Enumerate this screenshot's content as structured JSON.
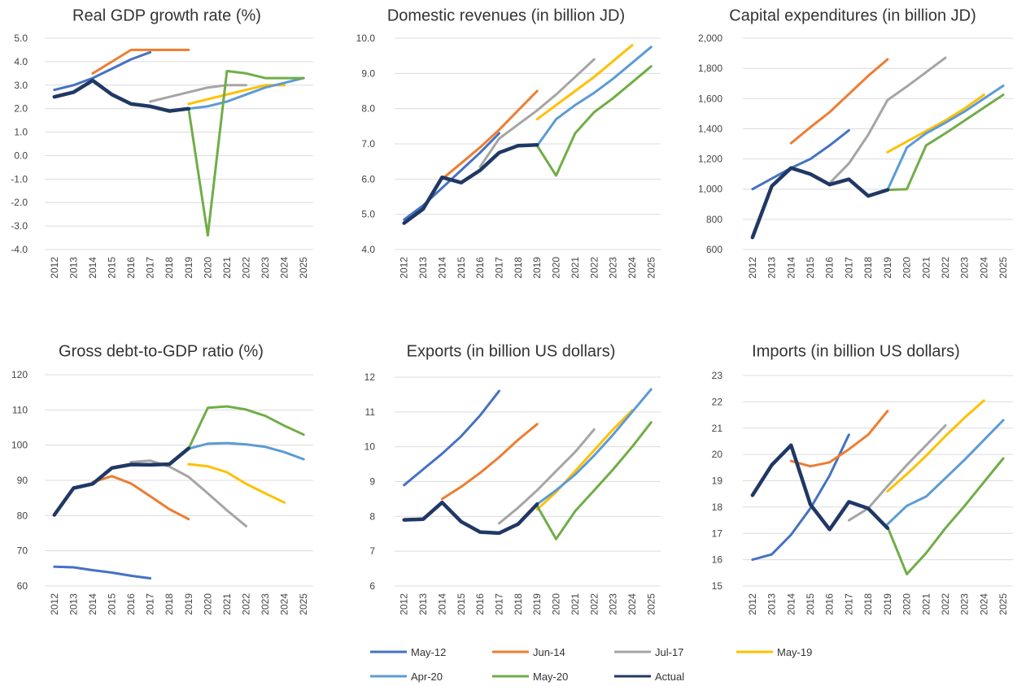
{
  "legend": [
    {
      "name": "May-12",
      "color": "#4472C4"
    },
    {
      "name": "Jun-14",
      "color": "#ED7D31"
    },
    {
      "name": "Jul-17",
      "color": "#A5A5A5"
    },
    {
      "name": "May-19",
      "color": "#FFC000"
    },
    {
      "name": "Apr-20",
      "color": "#5B9BD5"
    },
    {
      "name": "May-20",
      "color": "#70AD47"
    },
    {
      "name": "Actual",
      "color": "#203864"
    }
  ],
  "chart_data": [
    {
      "type": "line",
      "title": "Real GDP growth rate (%)",
      "categories": [
        "2012",
        "2013",
        "2014",
        "2015",
        "2016",
        "2017",
        "2018",
        "2019",
        "2020",
        "2021",
        "2022",
        "2023",
        "2024",
        "2025"
      ],
      "yticks": [
        "5.0",
        "4.0",
        "3.0",
        "2.0",
        "1.0",
        "0.0",
        "-1.0",
        "-2.0",
        "-3.0",
        "-4.0"
      ],
      "ylim": [
        -4,
        5
      ],
      "grid": true,
      "series": [
        {
          "name": "May-12",
          "x": [
            2012,
            2013,
            2014,
            2015,
            2016,
            2017
          ],
          "values": [
            2.8,
            3.0,
            3.3,
            3.7,
            4.1,
            4.4
          ]
        },
        {
          "name": "Jun-14",
          "x": [
            2014,
            2015,
            2016,
            2017,
            2018,
            2019
          ],
          "values": [
            3.5,
            4.0,
            4.5,
            4.5,
            4.5,
            4.5
          ]
        },
        {
          "name": "Jul-17",
          "x": [
            2017,
            2018,
            2019,
            2020,
            2021,
            2022
          ],
          "values": [
            2.3,
            2.5,
            2.7,
            2.9,
            3.0,
            3.0
          ]
        },
        {
          "name": "May-19",
          "x": [
            2019,
            2020,
            2021,
            2022,
            2023,
            2024
          ],
          "values": [
            2.2,
            2.4,
            2.6,
            2.8,
            3.0,
            3.0
          ]
        },
        {
          "name": "Apr-20",
          "x": [
            2019,
            2020,
            2021,
            2022,
            2023,
            2024,
            2025
          ],
          "values": [
            2.0,
            2.1,
            2.3,
            2.6,
            2.9,
            3.1,
            3.3
          ]
        },
        {
          "name": "May-20",
          "x": [
            2019,
            2020,
            2021,
            2022,
            2023,
            2024,
            2025
          ],
          "values": [
            2.0,
            -3.4,
            3.6,
            3.5,
            3.3,
            3.3,
            3.3
          ]
        },
        {
          "name": "Actual",
          "x": [
            2012,
            2013,
            2014,
            2015,
            2016,
            2017,
            2018,
            2019
          ],
          "values": [
            2.5,
            2.7,
            3.2,
            2.6,
            2.2,
            2.1,
            1.9,
            2.0
          ]
        }
      ]
    },
    {
      "type": "line",
      "title": "Domestic revenues (in billion JD)",
      "categories": [
        "2012",
        "2013",
        "2014",
        "2015",
        "2016",
        "2017",
        "2018",
        "2019",
        "2020",
        "2021",
        "2022",
        "2023",
        "2024",
        "2025"
      ],
      "yticks": [
        "10.0",
        "9.0",
        "8.0",
        "7.0",
        "6.0",
        "5.0",
        "4.0"
      ],
      "ylim": [
        4,
        10
      ],
      "grid": true,
      "series": [
        {
          "name": "May-12",
          "x": [
            2012,
            2013,
            2014,
            2015,
            2016,
            2017
          ],
          "values": [
            4.85,
            5.25,
            5.75,
            6.25,
            6.75,
            7.3
          ]
        },
        {
          "name": "Jun-14",
          "x": [
            2014,
            2015,
            2016,
            2017,
            2018,
            2019
          ],
          "values": [
            6.0,
            6.45,
            6.9,
            7.4,
            7.95,
            8.5
          ]
        },
        {
          "name": "Jul-17",
          "x": [
            2016,
            2017,
            2018,
            2019,
            2020,
            2021,
            2022
          ],
          "values": [
            6.35,
            7.15,
            7.55,
            7.95,
            8.4,
            8.9,
            9.4
          ]
        },
        {
          "name": "May-19",
          "x": [
            2019,
            2020,
            2021,
            2022,
            2023,
            2024
          ],
          "values": [
            7.7,
            8.1,
            8.5,
            8.9,
            9.35,
            9.8
          ]
        },
        {
          "name": "Apr-20",
          "x": [
            2019,
            2020,
            2021,
            2022,
            2023,
            2024,
            2025
          ],
          "values": [
            6.95,
            7.7,
            8.1,
            8.45,
            8.85,
            9.3,
            9.75
          ]
        },
        {
          "name": "May-20",
          "x": [
            2019,
            2020,
            2021,
            2022,
            2023,
            2024,
            2025
          ],
          "values": [
            6.95,
            6.1,
            7.3,
            7.9,
            8.3,
            8.75,
            9.2
          ]
        },
        {
          "name": "Actual",
          "x": [
            2012,
            2013,
            2014,
            2015,
            2016,
            2017,
            2018,
            2019
          ],
          "values": [
            4.75,
            5.15,
            6.05,
            5.9,
            6.25,
            6.75,
            6.95,
            6.97
          ]
        }
      ]
    },
    {
      "type": "line",
      "title": "Capital expenditures (in billion JD)",
      "categories": [
        "2012",
        "2013",
        "2014",
        "2015",
        "2016",
        "2017",
        "2018",
        "2019",
        "2020",
        "2021",
        "2022",
        "2023",
        "2024",
        "2025"
      ],
      "yticks": [
        "2,000",
        "1,800",
        "1,600",
        "1,400",
        "1,200",
        "1,000",
        "800",
        "600"
      ],
      "ylim": [
        600,
        2000
      ],
      "grid": true,
      "series": [
        {
          "name": "May-12",
          "x": [
            2012,
            2013,
            2014,
            2015,
            2016,
            2017
          ],
          "values": [
            1000,
            1070,
            1140,
            1200,
            1290,
            1390
          ]
        },
        {
          "name": "Jun-14",
          "x": [
            2014,
            2015,
            2016,
            2017,
            2018,
            2019
          ],
          "values": [
            1305,
            1410,
            1510,
            1630,
            1750,
            1860
          ]
        },
        {
          "name": "Jul-17",
          "x": [
            2016,
            2017,
            2018,
            2019,
            2020,
            2021,
            2022
          ],
          "values": [
            1040,
            1170,
            1360,
            1590,
            1680,
            1775,
            1870
          ]
        },
        {
          "name": "May-19",
          "x": [
            2019,
            2020,
            2021,
            2022,
            2023,
            2024
          ],
          "values": [
            1245,
            1315,
            1385,
            1455,
            1535,
            1625
          ]
        },
        {
          "name": "Apr-20",
          "x": [
            2019,
            2020,
            2021,
            2022,
            2023,
            2024,
            2025
          ],
          "values": [
            995,
            1275,
            1370,
            1440,
            1515,
            1600,
            1685
          ]
        },
        {
          "name": "May-20",
          "x": [
            2019,
            2020,
            2021,
            2022,
            2023,
            2024,
            2025
          ],
          "values": [
            995,
            1000,
            1290,
            1370,
            1455,
            1540,
            1625
          ]
        },
        {
          "name": "Actual",
          "x": [
            2012,
            2013,
            2014,
            2015,
            2016,
            2017,
            2018,
            2019
          ],
          "values": [
            680,
            1020,
            1140,
            1100,
            1030,
            1065,
            955,
            995
          ]
        }
      ]
    },
    {
      "type": "line",
      "title": "Gross debt-to-GDP ratio (%)",
      "categories": [
        "2012",
        "2013",
        "2014",
        "2015",
        "2016",
        "2017",
        "2018",
        "2019",
        "2020",
        "2021",
        "2022",
        "2023",
        "2024",
        "2025"
      ],
      "yticks": [
        "120",
        "110",
        "100",
        "90",
        "80",
        "70",
        "60"
      ],
      "ylim": [
        60,
        120
      ],
      "grid": true,
      "series": [
        {
          "name": "May-12",
          "x": [
            2012,
            2013,
            2014,
            2015,
            2016,
            2017
          ],
          "values": [
            65.5,
            65.3,
            64.5,
            63.8,
            62.9,
            62.2
          ]
        },
        {
          "name": "Jun-14",
          "x": [
            2014,
            2015,
            2016,
            2017,
            2018,
            2019
          ],
          "values": [
            89.5,
            91.2,
            89.1,
            85.5,
            81.8,
            79.0
          ]
        },
        {
          "name": "Jul-17",
          "x": [
            2016,
            2017,
            2018,
            2019,
            2020,
            2021,
            2022
          ],
          "values": [
            95.2,
            95.6,
            93.9,
            91.0,
            86.3,
            81.5,
            77.0
          ]
        },
        {
          "name": "May-19",
          "x": [
            2019,
            2020,
            2021,
            2022,
            2023,
            2024
          ],
          "values": [
            94.6,
            94.0,
            92.3,
            89.0,
            86.3,
            83.7
          ]
        },
        {
          "name": "Apr-20",
          "x": [
            2019,
            2020,
            2021,
            2022,
            2023,
            2024,
            2025
          ],
          "values": [
            99.0,
            100.4,
            100.6,
            100.2,
            99.5,
            98.0,
            96.0
          ]
        },
        {
          "name": "May-20",
          "x": [
            2019,
            2020,
            2021,
            2022,
            2023,
            2024,
            2025
          ],
          "values": [
            99.0,
            110.6,
            111.0,
            110.1,
            108.3,
            105.5,
            103.0
          ]
        },
        {
          "name": "Actual",
          "x": [
            2012,
            2013,
            2014,
            2015,
            2016,
            2017,
            2018,
            2019
          ],
          "values": [
            80.2,
            87.8,
            89.0,
            93.5,
            94.5,
            94.4,
            94.6,
            99.1
          ]
        }
      ]
    },
    {
      "type": "line",
      "title": "Exports (in billion US dollars)",
      "categories": [
        "2012",
        "2013",
        "2014",
        "2015",
        "2016",
        "2017",
        "2018",
        "2019",
        "2020",
        "2021",
        "2022",
        "2023",
        "2024",
        "2025"
      ],
      "yticks": [
        "12",
        "11",
        "10",
        "9",
        "8",
        "7",
        "6"
      ],
      "ylim": [
        6,
        12
      ],
      "grid": true,
      "series": [
        {
          "name": "May-12",
          "x": [
            2012,
            2013,
            2014,
            2015,
            2016,
            2017
          ],
          "values": [
            8.9,
            9.35,
            9.8,
            10.3,
            10.9,
            11.6
          ]
        },
        {
          "name": "Jun-14",
          "x": [
            2014,
            2015,
            2016,
            2017,
            2018,
            2019
          ],
          "values": [
            8.5,
            8.85,
            9.25,
            9.7,
            10.2,
            10.65
          ]
        },
        {
          "name": "Jul-17",
          "x": [
            2017,
            2018,
            2019,
            2020,
            2021,
            2022
          ],
          "values": [
            7.8,
            8.25,
            8.75,
            9.3,
            9.85,
            10.5
          ]
        },
        {
          "name": "May-19",
          "x": [
            2019,
            2020,
            2021,
            2022,
            2023,
            2024
          ],
          "values": [
            8.2,
            8.7,
            9.3,
            9.9,
            10.5,
            11.05
          ]
        },
        {
          "name": "Apr-20",
          "x": [
            2019,
            2020,
            2021,
            2022,
            2023,
            2024,
            2025
          ],
          "values": [
            8.35,
            8.75,
            9.2,
            9.75,
            10.35,
            11.0,
            11.65
          ]
        },
        {
          "name": "May-20",
          "x": [
            2019,
            2020,
            2021,
            2022,
            2023,
            2024,
            2025
          ],
          "values": [
            8.3,
            7.35,
            8.15,
            8.75,
            9.35,
            10.0,
            10.7
          ]
        },
        {
          "name": "Actual",
          "x": [
            2012,
            2013,
            2014,
            2015,
            2016,
            2017,
            2018,
            2019
          ],
          "values": [
            7.9,
            7.92,
            8.4,
            7.85,
            7.55,
            7.52,
            7.78,
            8.35
          ]
        }
      ]
    },
    {
      "type": "line",
      "title": "Imports  (in billion US dollars)",
      "categories": [
        "2012",
        "2013",
        "2014",
        "2015",
        "2016",
        "2017",
        "2018",
        "2019",
        "2020",
        "2021",
        "2022",
        "2023",
        "2024",
        "2025"
      ],
      "yticks": [
        "23",
        "22",
        "21",
        "20",
        "19",
        "18",
        "17",
        "16",
        "15"
      ],
      "ylim": [
        15,
        23
      ],
      "grid": true,
      "series": [
        {
          "name": "May-12",
          "x": [
            2012,
            2013,
            2014,
            2015,
            2016,
            2017
          ],
          "values": [
            16.0,
            16.2,
            16.95,
            17.95,
            19.2,
            20.75
          ]
        },
        {
          "name": "Jun-14",
          "x": [
            2014,
            2015,
            2016,
            2017,
            2018,
            2019
          ],
          "values": [
            19.75,
            19.55,
            19.7,
            20.2,
            20.75,
            21.65
          ]
        },
        {
          "name": "Jul-17",
          "x": [
            2017,
            2018,
            2019,
            2020,
            2021,
            2022
          ],
          "values": [
            17.5,
            17.95,
            18.8,
            19.6,
            20.35,
            21.1
          ]
        },
        {
          "name": "May-19",
          "x": [
            2019,
            2020,
            2021,
            2022,
            2023,
            2024
          ],
          "values": [
            18.6,
            19.25,
            19.95,
            20.7,
            21.4,
            22.05
          ]
        },
        {
          "name": "Apr-20",
          "x": [
            2019,
            2020,
            2021,
            2022,
            2023,
            2024,
            2025
          ],
          "values": [
            17.35,
            18.05,
            18.4,
            19.1,
            19.8,
            20.55,
            21.3
          ]
        },
        {
          "name": "May-20",
          "x": [
            2019,
            2020,
            2021,
            2022,
            2023,
            2024,
            2025
          ],
          "values": [
            17.25,
            15.45,
            16.25,
            17.2,
            18.05,
            18.95,
            19.85
          ]
        },
        {
          "name": "Actual",
          "x": [
            2012,
            2013,
            2014,
            2015,
            2016,
            2017,
            2018,
            2019
          ],
          "values": [
            18.45,
            19.6,
            20.35,
            18.1,
            17.15,
            18.2,
            17.95,
            17.2
          ]
        }
      ]
    }
  ]
}
